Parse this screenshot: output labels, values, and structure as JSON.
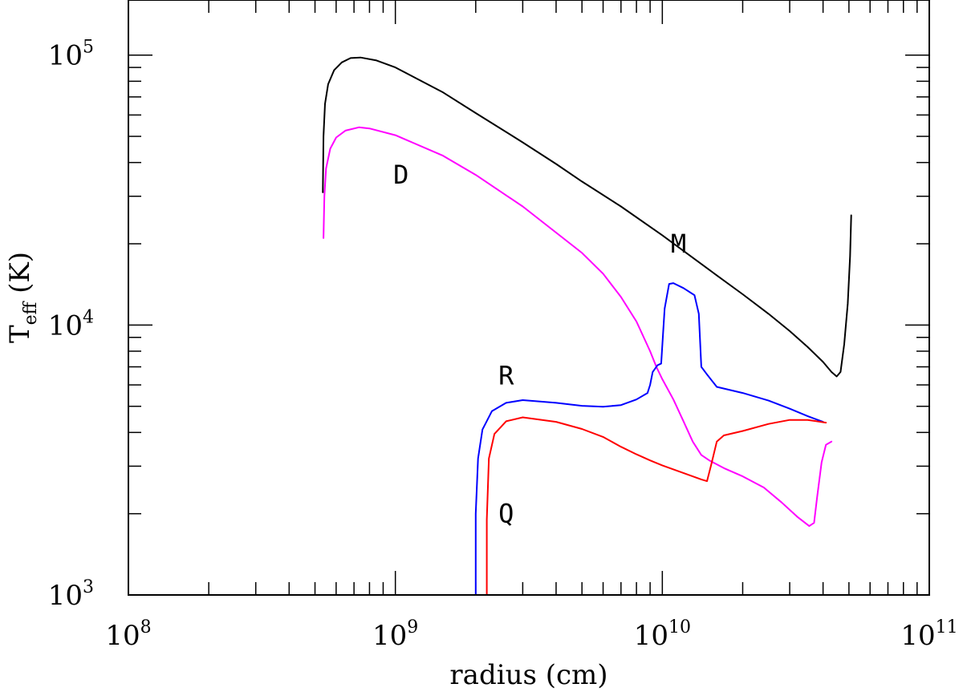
{
  "chart_data": {
    "type": "line",
    "xlabel": "radius (cm)",
    "ylabel": {
      "base": "T",
      "subscript": "eff",
      "unit": "(K)"
    },
    "x_scale": "log",
    "y_scale": "log",
    "xlim": [
      100000000.0,
      100000000000.0
    ],
    "ylim": [
      1000.0,
      160000.0
    ],
    "x_tick_labels": [
      {
        "value": 100000000.0,
        "base": "10",
        "exp": "8"
      },
      {
        "value": 1000000000.0,
        "base": "10",
        "exp": "9"
      },
      {
        "value": 10000000000.0,
        "base": "10",
        "exp": "10"
      },
      {
        "value": 100000000000.0,
        "base": "10",
        "exp": "11"
      }
    ],
    "y_tick_labels": [
      {
        "value": 1000.0,
        "base": "10",
        "exp": "3"
      },
      {
        "value": 10000.0,
        "base": "10",
        "exp": "4"
      },
      {
        "value": 100000.0,
        "base": "10",
        "exp": "5"
      }
    ],
    "grid": false,
    "series": [
      {
        "name": "M",
        "color": "#000000",
        "label_at": [
          11500000000.0,
          20000
        ],
        "points": [
          [
            535000000.0,
            31000
          ],
          [
            538000000.0,
            50000
          ],
          [
            545000000.0,
            66000
          ],
          [
            560000000.0,
            78000
          ],
          [
            590000000.0,
            88000
          ],
          [
            630000000.0,
            94000
          ],
          [
            680000000.0,
            97500
          ],
          [
            740000000.0,
            98000
          ],
          [
            850000000.0,
            95500
          ],
          [
            1000000000.0,
            90000
          ],
          [
            1500000000.0,
            73000
          ],
          [
            2000000000.0,
            61000
          ],
          [
            3000000000.0,
            47500
          ],
          [
            4000000000.0,
            39500
          ],
          [
            5000000000.0,
            34000
          ],
          [
            7000000000.0,
            27500
          ],
          [
            10000000000.0,
            21500
          ],
          [
            15000000000.0,
            16000
          ],
          [
            20000000000.0,
            13000
          ],
          [
            25000000000.0,
            11000
          ],
          [
            30000000000.0,
            9500
          ],
          [
            35000000000.0,
            8300
          ],
          [
            40000000000.0,
            7300
          ],
          [
            43000000000.0,
            6700
          ],
          [
            45000000000.0,
            6450
          ],
          [
            46500000000.0,
            6700
          ],
          [
            48000000000.0,
            8500
          ],
          [
            49500000000.0,
            12000
          ],
          [
            50500000000.0,
            18000
          ],
          [
            51000000000.0,
            25500
          ]
        ]
      },
      {
        "name": "D",
        "color": "#ff00ff",
        "label_at": [
          1050000000.0,
          36000
        ],
        "points": [
          [
            538000000.0,
            21000
          ],
          [
            542000000.0,
            30000
          ],
          [
            550000000.0,
            38000
          ],
          [
            570000000.0,
            45000
          ],
          [
            600000000.0,
            49500
          ],
          [
            650000000.0,
            52500
          ],
          [
            730000000.0,
            54000
          ],
          [
            800000000.0,
            53500
          ],
          [
            1000000000.0,
            50500
          ],
          [
            1500000000.0,
            42500
          ],
          [
            2000000000.0,
            36000
          ],
          [
            3000000000.0,
            27500
          ],
          [
            4000000000.0,
            22000
          ],
          [
            5000000000.0,
            18500
          ],
          [
            6000000000.0,
            15500
          ],
          [
            7000000000.0,
            12700
          ],
          [
            8000000000.0,
            10300
          ],
          [
            9000000000.0,
            8000
          ],
          [
            9500000000.0,
            7000
          ],
          [
            10000000000.0,
            6300
          ],
          [
            11000000000.0,
            5300
          ],
          [
            12000000000.0,
            4400
          ],
          [
            13000000000.0,
            3700
          ],
          [
            14000000000.0,
            3300
          ],
          [
            15000000000.0,
            3150
          ],
          [
            17000000000.0,
            2950
          ],
          [
            20000000000.0,
            2750
          ],
          [
            24000000000.0,
            2500
          ],
          [
            28000000000.0,
            2200
          ],
          [
            32000000000.0,
            1950
          ],
          [
            35500000000.0,
            1800
          ],
          [
            37000000000.0,
            1850
          ],
          [
            38000000000.0,
            2300
          ],
          [
            39500000000.0,
            3100
          ],
          [
            41000000000.0,
            3600
          ],
          [
            43000000000.0,
            3700
          ]
        ]
      },
      {
        "name": "R",
        "color": "#0000ff",
        "label_at": [
          2600000000.0,
          6500
        ],
        "points": [
          [
            2000000000.0,
            1000
          ],
          [
            2000000000.0,
            2000
          ],
          [
            2040000000.0,
            3200
          ],
          [
            2120000000.0,
            4100
          ],
          [
            2300000000.0,
            4800
          ],
          [
            2600000000.0,
            5150
          ],
          [
            3000000000.0,
            5270
          ],
          [
            4000000000.0,
            5150
          ],
          [
            5000000000.0,
            5020
          ],
          [
            6000000000.0,
            4980
          ],
          [
            7000000000.0,
            5050
          ],
          [
            8000000000.0,
            5300
          ],
          [
            8800000000.0,
            5600
          ],
          [
            9000000000.0,
            6000
          ],
          [
            9200000000.0,
            6700
          ],
          [
            9600000000.0,
            7100
          ],
          [
            9900000000.0,
            7200
          ],
          [
            10200000000.0,
            11500
          ],
          [
            10600000000.0,
            14200
          ],
          [
            11000000000.0,
            14300
          ],
          [
            12000000000.0,
            13700
          ],
          [
            13200000000.0,
            12900
          ],
          [
            13700000000.0,
            11000
          ],
          [
            14000000000.0,
            7000
          ],
          [
            14800000000.0,
            6500
          ],
          [
            16000000000.0,
            5900
          ],
          [
            20000000000.0,
            5600
          ],
          [
            25000000000.0,
            5250
          ],
          [
            30000000000.0,
            4900
          ],
          [
            35000000000.0,
            4600
          ],
          [
            40000000000.0,
            4380
          ]
        ]
      },
      {
        "name": "Q",
        "color": "#ff0000",
        "label_at": [
          2600000000.0,
          2000
        ],
        "points": [
          [
            2200000000.0,
            1000
          ],
          [
            2200000000.0,
            1900
          ],
          [
            2240000000.0,
            3200
          ],
          [
            2350000000.0,
            3950
          ],
          [
            2600000000.0,
            4400
          ],
          [
            3000000000.0,
            4550
          ],
          [
            4000000000.0,
            4380
          ],
          [
            5000000000.0,
            4120
          ],
          [
            6000000000.0,
            3850
          ],
          [
            7000000000.0,
            3540
          ],
          [
            8000000000.0,
            3320
          ],
          [
            9000000000.0,
            3150
          ],
          [
            10000000000.0,
            3020
          ],
          [
            12000000000.0,
            2830
          ],
          [
            14000000000.0,
            2680
          ],
          [
            14700000000.0,
            2640
          ],
          [
            15200000000.0,
            3000
          ],
          [
            16000000000.0,
            3700
          ],
          [
            17000000000.0,
            3900
          ],
          [
            20000000000.0,
            4050
          ],
          [
            25000000000.0,
            4300
          ],
          [
            30000000000.0,
            4450
          ],
          [
            35000000000.0,
            4450
          ],
          [
            41000000000.0,
            4350
          ]
        ]
      }
    ]
  }
}
